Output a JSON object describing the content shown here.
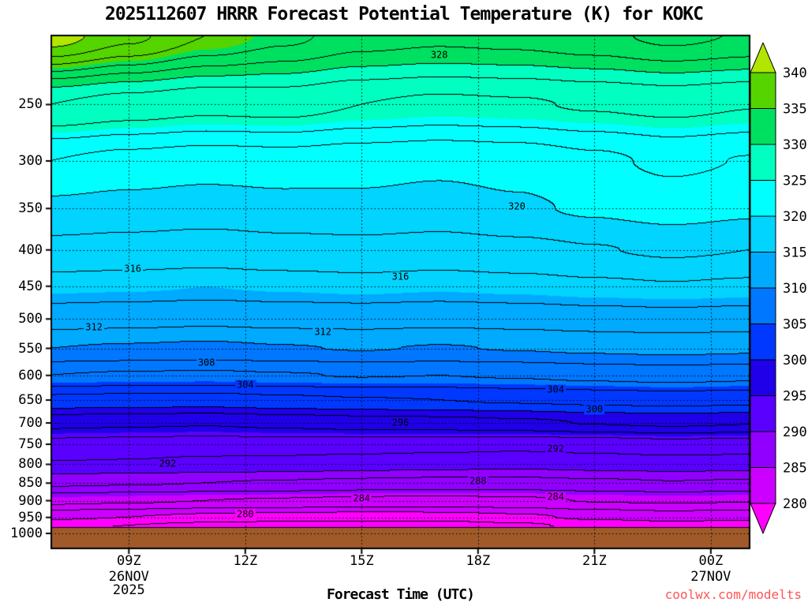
{
  "page": {
    "title": "2025112607 HRRR Forecast Potential Temperature (K) for KOKC",
    "watermark": "coolwx.com/modelts",
    "background_color": "#ffffff",
    "watermark_color": "#ff5555"
  },
  "chart_data": {
    "type": "heatmap",
    "title": "2025112607 HRRR Forecast Potential Temperature (K) for KOKC",
    "xlabel": "Forecast Time (UTC)",
    "ylabel": "",
    "units": "K",
    "x_domain": [
      7,
      25
    ],
    "p_domain": [
      200,
      1050
    ],
    "y_scale": "log",
    "grid": "dotted",
    "x_hours": [
      7,
      9,
      11,
      13,
      15,
      17,
      19,
      21,
      23,
      25
    ],
    "pressure_levels": [
      200,
      250,
      300,
      350,
      400,
      450,
      500,
      550,
      600,
      650,
      700,
      750,
      800,
      850,
      900,
      950,
      975,
      1000
    ],
    "theta_grid": [
      [
        341.0,
        338.5,
        336.0,
        334.5,
        333.0,
        332.5,
        332.8,
        333.5,
        334.5,
        333.8
      ],
      [
        328.0,
        327.2,
        326.6,
        326.8,
        326.0,
        325.6,
        325.8,
        326.2,
        326.6,
        326.1
      ],
      [
        322.0,
        321.4,
        321.0,
        321.2,
        320.8,
        320.5,
        320.8,
        321.6,
        322.4,
        321.9
      ],
      [
        319.6,
        319.3,
        319.0,
        319.3,
        319.5,
        319.2,
        319.7,
        320.3,
        320.9,
        320.4
      ],
      [
        317.4,
        317.2,
        317.0,
        317.3,
        317.4,
        317.2,
        317.5,
        317.9,
        318.3,
        318.0
      ],
      [
        315.3,
        315.2,
        315.0,
        315.2,
        315.4,
        315.2,
        315.4,
        315.7,
        315.9,
        315.7
      ],
      [
        312.9,
        312.7,
        312.5,
        312.7,
        312.8,
        312.6,
        312.8,
        313.1,
        313.3,
        313.1
      ],
      [
        310.0,
        309.8,
        309.6,
        309.9,
        310.1,
        309.9,
        310.1,
        310.4,
        310.6,
        310.4
      ],
      [
        306.0,
        305.8,
        305.7,
        305.9,
        306.1,
        306.0,
        306.2,
        306.6,
        306.9,
        306.6
      ],
      [
        301.5,
        301.3,
        301.2,
        301.6,
        301.9,
        302.0,
        302.3,
        302.6,
        302.9,
        302.6
      ],
      [
        296.6,
        296.4,
        296.2,
        296.6,
        297.0,
        297.2,
        297.6,
        298.1,
        298.4,
        298.1
      ],
      [
        293.4,
        293.2,
        293.0,
        293.1,
        293.0,
        292.8,
        292.6,
        292.9,
        293.3,
        293.1
      ],
      [
        291.9,
        291.8,
        291.5,
        291.3,
        291.0,
        290.8,
        290.6,
        290.9,
        291.1,
        291.0
      ],
      [
        288.4,
        288.2,
        288.0,
        287.8,
        287.5,
        287.3,
        287.3,
        287.6,
        287.9,
        287.7
      ],
      [
        284.6,
        284.3,
        284.0,
        283.8,
        283.5,
        283.4,
        283.6,
        284.1,
        284.3,
        284.1
      ],
      [
        280.4,
        280.0,
        279.5,
        279.2,
        279.0,
        279.1,
        279.6,
        280.4,
        280.9,
        280.6
      ],
      [
        278.6,
        278.0,
        277.4,
        277.0,
        276.8,
        276.9,
        277.6,
        278.6,
        279.1,
        278.9
      ],
      [
        277.6,
        277.0,
        276.4,
        276.0,
        275.8,
        275.9,
        276.6,
        277.6,
        278.1,
        277.9
      ]
    ],
    "contour_interval": 2,
    "contour_labels": [
      {
        "value": 328,
        "hour": 17.0,
        "p": 213
      },
      {
        "value": 320,
        "hour": 19.0,
        "p": 348
      },
      {
        "value": 316,
        "hour": 9.1,
        "p": 426
      },
      {
        "value": 316,
        "hour": 16.0,
        "p": 437
      },
      {
        "value": 312,
        "hour": 8.1,
        "p": 514
      },
      {
        "value": 312,
        "hour": 14.0,
        "p": 522
      },
      {
        "value": 308,
        "hour": 11.0,
        "p": 577
      },
      {
        "value": 304,
        "hour": 12.0,
        "p": 620
      },
      {
        "value": 304,
        "hour": 20.0,
        "p": 628
      },
      {
        "value": 300,
        "hour": 21.0,
        "p": 670
      },
      {
        "value": 296,
        "hour": 16.0,
        "p": 700
      },
      {
        "value": 292,
        "hour": 10.0,
        "p": 800
      },
      {
        "value": 292,
        "hour": 20.0,
        "p": 762
      },
      {
        "value": 288,
        "hour": 18.0,
        "p": 845
      },
      {
        "value": 284,
        "hour": 15.0,
        "p": 895
      },
      {
        "value": 284,
        "hour": 20.0,
        "p": 890
      },
      {
        "value": 280,
        "hour": 12.0,
        "p": 940
      }
    ],
    "x_ticks": [
      {
        "hour": 9,
        "label": "09Z"
      },
      {
        "hour": 12,
        "label": "12Z"
      },
      {
        "hour": 15,
        "label": "15Z"
      },
      {
        "hour": 18,
        "label": "18Z"
      },
      {
        "hour": 21,
        "label": "21Z"
      },
      {
        "hour": 24,
        "label": "00Z"
      }
    ],
    "x_date_labels": [
      {
        "hour": 9,
        "lines": [
          "26NOV",
          "2025"
        ]
      },
      {
        "hour": 24,
        "lines": [
          "27NOV"
        ]
      }
    ],
    "y_ticks": [
      250,
      300,
      350,
      400,
      450,
      500,
      550,
      600,
      650,
      700,
      750,
      800,
      850,
      900,
      950,
      1000
    ],
    "terrain": {
      "top_pressure": 980,
      "color": "#a05a2a"
    },
    "colorbar": {
      "min": 280,
      "max": 340,
      "segment_step": 5,
      "tick_values": [
        280,
        285,
        290,
        295,
        300,
        305,
        310,
        315,
        320,
        325,
        330,
        335,
        340
      ],
      "colors": [
        "#ff00ff",
        "#cc00ff",
        "#9100ff",
        "#5a00ff",
        "#1f00e8",
        "#0038ff",
        "#0077ff",
        "#00aaff",
        "#00d4ff",
        "#00ffff",
        "#00ffc0",
        "#00e060",
        "#55d400",
        "#b2e600"
      ]
    }
  }
}
